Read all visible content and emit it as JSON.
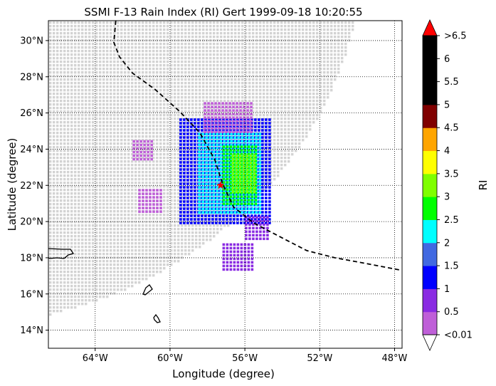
{
  "chart_data": {
    "type": "heatmap",
    "title": "SSMI F-13 Rain Index (RI) Gert 1999-09-18 10:20:55",
    "xlabel": "Longitude (degree)",
    "ylabel": "Latitude (degree)",
    "xlim": [
      -66.5,
      -47.6
    ],
    "ylim": [
      13.0,
      31.1
    ],
    "x_ticks": [
      {
        "value": -64,
        "label": "64°W"
      },
      {
        "value": -60,
        "label": "60°W"
      },
      {
        "value": -56,
        "label": "56°W"
      },
      {
        "value": -52,
        "label": "52°W"
      },
      {
        "value": -48,
        "label": "48°W"
      }
    ],
    "y_ticks": [
      {
        "value": 14,
        "label": "14°N"
      },
      {
        "value": 16,
        "label": "16°N"
      },
      {
        "value": 18,
        "label": "18°N"
      },
      {
        "value": 20,
        "label": "20°N"
      },
      {
        "value": 22,
        "label": "22°N"
      },
      {
        "value": 24,
        "label": "24°N"
      },
      {
        "value": 26,
        "label": "26°N"
      },
      {
        "value": 28,
        "label": "28°N"
      },
      {
        "value": 30,
        "label": "30°N"
      }
    ],
    "grid": true,
    "colorbar": {
      "label": "RI",
      "levels": [
        {
          "label": "<0.01",
          "color": "#bf5fd8"
        },
        {
          "label": "0.5",
          "color": "#8a2be2"
        },
        {
          "label": "1",
          "color": "#0000ff"
        },
        {
          "label": "1.5",
          "color": "#4169e1"
        },
        {
          "label": "2",
          "color": "#00ffff"
        },
        {
          "label": "2.5",
          "color": "#00ff00"
        },
        {
          "label": "3",
          "color": "#7fff00"
        },
        {
          "label": "3.5",
          "color": "#ffff00"
        },
        {
          "label": "4",
          "color": "#ffa500"
        },
        {
          "label": "4.5",
          "color": "#800000"
        },
        {
          "label": "5",
          "color": "#000000"
        },
        {
          "label": "5.5",
          "color": "#000000"
        },
        {
          "label": "6",
          "color": "#000000"
        },
        {
          "label": ">6.5",
          "color": "#ff0000"
        }
      ],
      "under_color": "#ffffff",
      "over_color": "#ff0000"
    },
    "swath_color": "#d3d3d3",
    "storm_track": [
      [
        -62.9,
        31.1
      ],
      [
        -63.0,
        29.9
      ],
      [
        -62.7,
        29.1
      ],
      [
        -62.0,
        28.2
      ],
      [
        -60.8,
        27.3
      ],
      [
        -59.5,
        26.1
      ],
      [
        -58.4,
        24.9
      ],
      [
        -57.6,
        23.4
      ],
      [
        -57.2,
        22.1
      ],
      [
        -56.6,
        20.8
      ],
      [
        -55.5,
        19.9
      ],
      [
        -54.2,
        19.2
      ],
      [
        -52.7,
        18.4
      ],
      [
        -51.2,
        18.0
      ],
      [
        -49.6,
        17.7
      ],
      [
        -47.6,
        17.3
      ]
    ],
    "storm_center": [
      -57.3,
      22.0
    ],
    "rain_regions": [
      {
        "lon": [
          -59.5,
          -54.6
        ],
        "lat": [
          19.8,
          25.7
        ],
        "ri": "1"
      },
      {
        "lon": [
          -58.5,
          -55.2
        ],
        "lat": [
          20.4,
          24.9
        ],
        "ri": "2"
      },
      {
        "lon": [
          -57.2,
          -55.3
        ],
        "lat": [
          21.0,
          24.2
        ],
        "ri": "2.5"
      },
      {
        "lon": [
          -56.7,
          -55.5
        ],
        "lat": [
          21.6,
          23.7
        ],
        "ri": "3"
      },
      {
        "lon": [
          -58.2,
          -55.6
        ],
        "lat": [
          24.9,
          26.6
        ],
        "ri": "<0.01"
      },
      {
        "lon": [
          -56.0,
          -54.8
        ],
        "lat": [
          19.0,
          20.3
        ],
        "ri": "0.5"
      },
      {
        "lon": [
          -57.2,
          -55.5
        ],
        "lat": [
          17.4,
          18.8
        ],
        "ri": "0.5"
      },
      {
        "lon": [
          -61.7,
          -60.4
        ],
        "lat": [
          20.6,
          21.8
        ],
        "ri": "<0.01"
      },
      {
        "lon": [
          -62.0,
          -61.0
        ],
        "lat": [
          23.5,
          24.5
        ],
        "ri": "<0.01"
      }
    ]
  },
  "ui": {
    "colors": {
      "storm_center_marker": "#ff0000",
      "coast": "#000000",
      "grid": "#000000",
      "background": "#ffffff"
    }
  }
}
